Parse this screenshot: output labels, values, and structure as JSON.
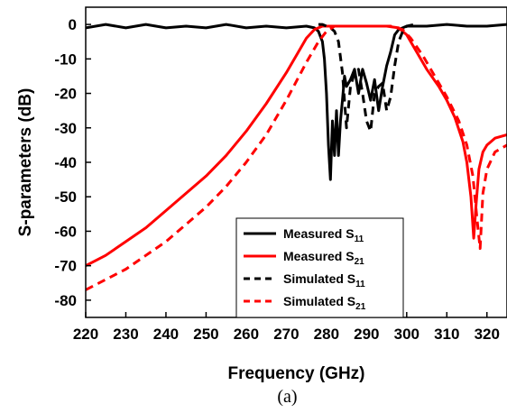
{
  "chart_data": {
    "type": "line",
    "caption": "(a)",
    "xlabel": "Frequency (GHz)",
    "ylabel": "S-parameters (dB)",
    "xlim": [
      220,
      325
    ],
    "ylim": [
      -85,
      5
    ],
    "xticks": [
      220,
      230,
      240,
      250,
      260,
      270,
      280,
      290,
      300,
      310,
      320
    ],
    "yticks": [
      0,
      -10,
      -20,
      -30,
      -40,
      -50,
      -60,
      -70,
      -80
    ],
    "grid": false,
    "legend_position": "lower-center",
    "series": [
      {
        "name": "Measured S",
        "sub": "11",
        "color": "#000000",
        "style": "solid",
        "x": [
          220,
          225,
          230,
          235,
          240,
          245,
          250,
          255,
          260,
          265,
          270,
          275,
          277,
          278,
          279,
          279.5,
          280,
          280.5,
          281,
          281.5,
          282,
          282.5,
          283,
          283.5,
          284,
          284.5,
          285,
          286,
          287,
          288,
          289,
          290,
          291,
          292,
          293,
          294,
          295,
          296,
          297,
          298,
          300,
          305,
          310,
          315,
          320,
          325
        ],
        "y": [
          -1,
          0,
          -1,
          0,
          -1,
          -0.5,
          -1,
          0,
          -1,
          -0.5,
          -1,
          -0.5,
          -1,
          -2,
          -5,
          -10,
          -20,
          -35,
          -45,
          -28,
          -38,
          -25,
          -38,
          -28,
          -22,
          -15,
          -18,
          -16,
          -13,
          -20,
          -13,
          -17,
          -22,
          -16,
          -25,
          -18,
          -12,
          -8,
          -3,
          -1.5,
          -0.5,
          -0.5,
          0,
          -0.5,
          -0.5,
          0
        ]
      },
      {
        "name": "Measured S",
        "sub": "21",
        "color": "#ff0000",
        "style": "solid",
        "x": [
          220,
          225,
          230,
          235,
          240,
          245,
          250,
          255,
          260,
          265,
          270,
          273,
          275,
          277,
          279,
          281,
          285,
          290,
          295,
          298,
          300,
          302,
          305,
          308,
          310,
          312,
          314,
          315,
          316,
          316.7,
          317.3,
          318,
          319,
          320,
          322,
          325
        ],
        "y": [
          -70,
          -67,
          -63,
          -59,
          -54,
          -49,
          -44,
          -38,
          -31,
          -23,
          -14,
          -8,
          -4,
          -1.5,
          -0.5,
          -0.5,
          -0.5,
          -0.5,
          -0.5,
          -1,
          -3,
          -7,
          -13,
          -18,
          -22,
          -27,
          -34,
          -40,
          -50,
          -62,
          -52,
          -42,
          -37,
          -35,
          -33,
          -32
        ]
      },
      {
        "name": "Simulated S",
        "sub": "11",
        "color": "#000000",
        "style": "dashed",
        "x": [
          278,
          279,
          280,
          281,
          282,
          283,
          284,
          285,
          286,
          287,
          288,
          289,
          290,
          291,
          292,
          293,
          294,
          295,
          296,
          297,
          298,
          299,
          300,
          302
        ],
        "y": [
          0,
          0,
          -0.5,
          -1,
          -2,
          -5,
          -14,
          -30,
          -18,
          -14,
          -13,
          -20,
          -28,
          -31,
          -20,
          -18,
          -17,
          -25,
          -21,
          -12,
          -5,
          -2,
          -0.5,
          0
        ]
      },
      {
        "name": "Simulated S",
        "sub": "21",
        "color": "#ff0000",
        "style": "dashed",
        "x": [
          220,
          225,
          230,
          235,
          240,
          245,
          250,
          255,
          260,
          265,
          270,
          275,
          278,
          280,
          282,
          284,
          290,
          296,
          299,
          301,
          304,
          307,
          310,
          313,
          315,
          316.5,
          317.5,
          318.3,
          319,
          320,
          322,
          325
        ],
        "y": [
          -77,
          -74,
          -71,
          -67,
          -63,
          -58,
          -53,
          -47,
          -40,
          -32,
          -22,
          -11,
          -5,
          -2,
          -0.5,
          -0.5,
          -0.5,
          -0.5,
          -1.5,
          -4,
          -9,
          -15,
          -21,
          -28,
          -35,
          -44,
          -56,
          -65,
          -49,
          -42,
          -37,
          -35
        ]
      }
    ]
  }
}
